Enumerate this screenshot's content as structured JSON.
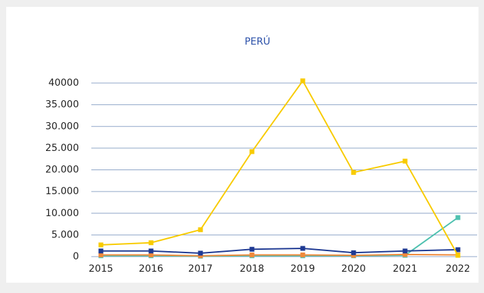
{
  "chart_data": {
    "type": "line",
    "title": "PERÚ",
    "categories": [
      "2015",
      "2016",
      "2017",
      "2018",
      "2019",
      "2020",
      "2021",
      "2022"
    ],
    "series": [
      {
        "color": "#4fc1b0",
        "values": [
          200,
          200,
          100,
          200,
          200,
          200,
          300,
          9000
        ]
      },
      {
        "color": "#f08a3c",
        "values": [
          400,
          400,
          200,
          400,
          400,
          300,
          500,
          400
        ]
      },
      {
        "color": "#1f3a93",
        "values": [
          1300,
          1300,
          800,
          1700,
          1900,
          900,
          1300,
          1600
        ]
      },
      {
        "color": "#f8cb00",
        "values": [
          2700,
          3200,
          6200,
          24200,
          40500,
          19400,
          22000,
          300
        ]
      }
    ],
    "ylim": [
      0,
      40000
    ],
    "yticks": [
      0,
      {
        "value": 5000,
        "label": "5.000"
      },
      {
        "value": 10000,
        "label": "10.000"
      },
      {
        "value": 15000,
        "label": "15.000"
      },
      {
        "value": 20000,
        "label": "20.000"
      },
      {
        "value": 25000,
        "label": "25.000"
      },
      {
        "value": 30000,
        "label": "30.000"
      },
      {
        "value": 35000,
        "label": "35.000"
      },
      40000
    ],
    "grid": true
  }
}
